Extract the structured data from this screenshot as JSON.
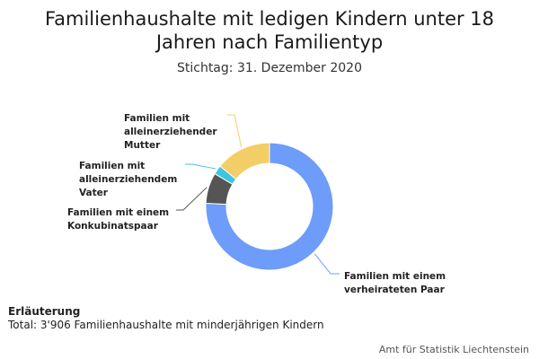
{
  "chart_data": {
    "type": "pie",
    "donut": true,
    "title": "Familienhaushalte mit ledigen Kindern unter 18 Jahren nach Familientyp",
    "subtitle": "Stichtag: 31. Dezember 2020",
    "slices": [
      {
        "label": "Familien mit einem verheirateten Paar",
        "value": 2960,
        "color": "#6e9cfa"
      },
      {
        "label": "Familien mit einem Konkubinatspaar",
        "value": 305,
        "color": "#555555"
      },
      {
        "label": "Familien mit alleinerziehendem Vater",
        "value": 90,
        "color": "#40c4df"
      },
      {
        "label": "Familien mit alleinerziehender Mutter",
        "value": 551,
        "color": "#f3cd66"
      }
    ],
    "total": 3906
  },
  "note": {
    "heading": "Erläuterung",
    "text": "Total: 3'906 Familienhaushalte mit minderjährigen Kindern"
  },
  "credits": "Amt für Statistik Liechtenstein"
}
